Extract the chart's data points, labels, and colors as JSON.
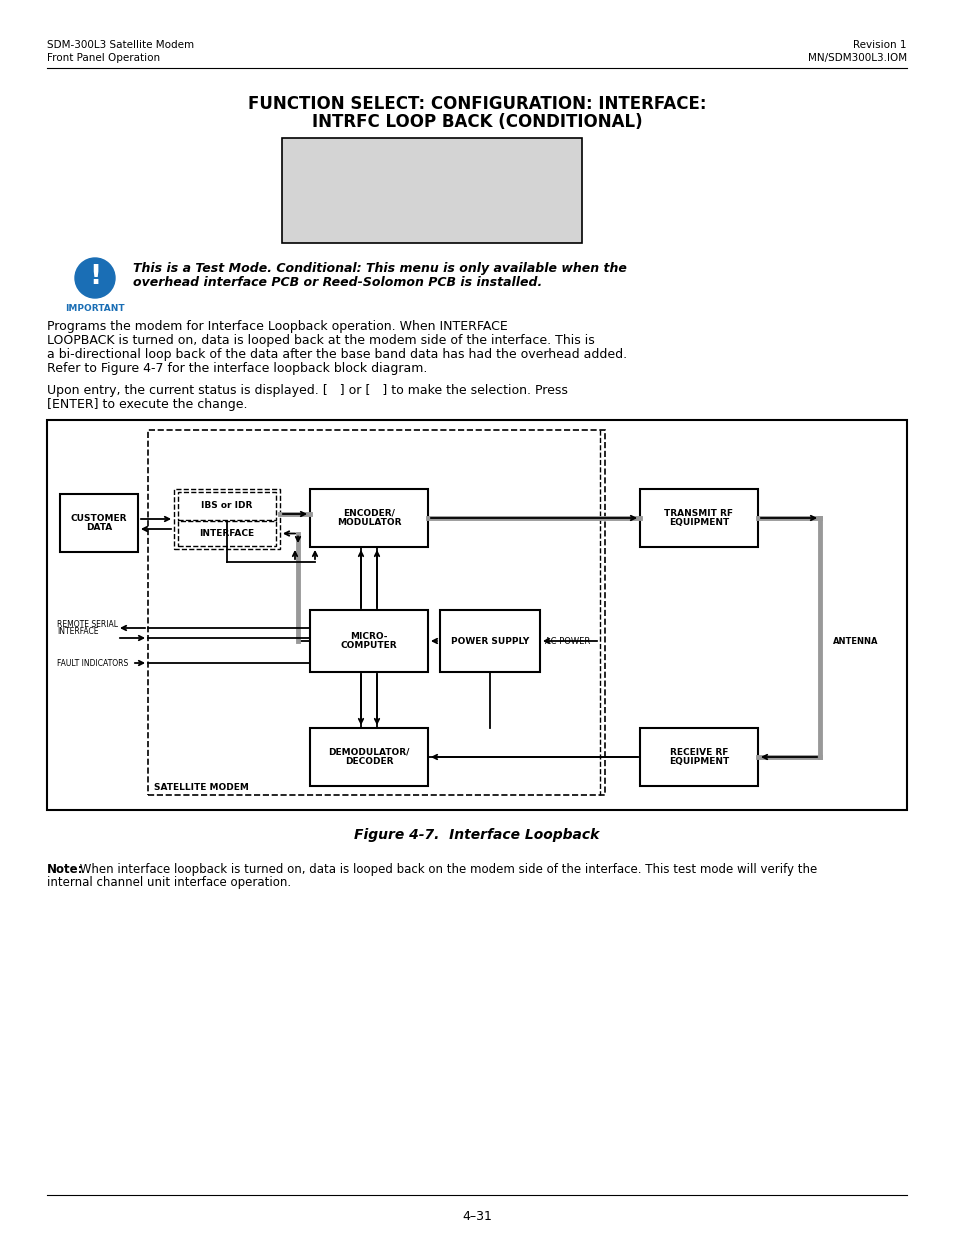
{
  "header_left_line1": "SDM-300L3 Satellite Modem",
  "header_left_line2": "Front Panel Operation",
  "header_right_line1": "Revision 1",
  "header_right_line2": "MN/SDM300L3.IOM",
  "page_title_line1": "FUNCTION SELECT: CONFIGURATION: INTERFACE:",
  "page_title_line2": "INTRFC LOOP BACK (CONDITIONAL)",
  "important_label": "IMPORTANT",
  "imp_line1": "This is a Test Mode. Conditional: This menu is only available when the",
  "imp_line2": "overhead interface PCB or Reed-Solomon PCB is installed.",
  "para1_lines": [
    "Programs the modem for Interface Loopback operation. When INTERFACE",
    "LOOPBACK is turned on, data is looped back at the modem side of the interface. This is",
    "a bi-directional loop back of the data after the base band data has had the overhead added.",
    "Refer to Figure 4-7 for the interface loopback block diagram."
  ],
  "para2_line1": "Upon entry, the current status is displayed. [   ] or [   ] to make the selection. Press",
  "para2_line2": "[ENTER] to execute the change.",
  "figure_caption": "Figure 4-7.  Interface Loopback",
  "note_bold": "Note:",
  "note_rest": " When interface loopback is turned on, data is looped back on the modem side of the interface. This test mode will verify the",
  "note_line2": "internal channel unit interface operation.",
  "page_number": "4–31",
  "bg_color": "#ffffff",
  "box_bg": "#d4d4d4",
  "blue_color": "#1a6eb5"
}
